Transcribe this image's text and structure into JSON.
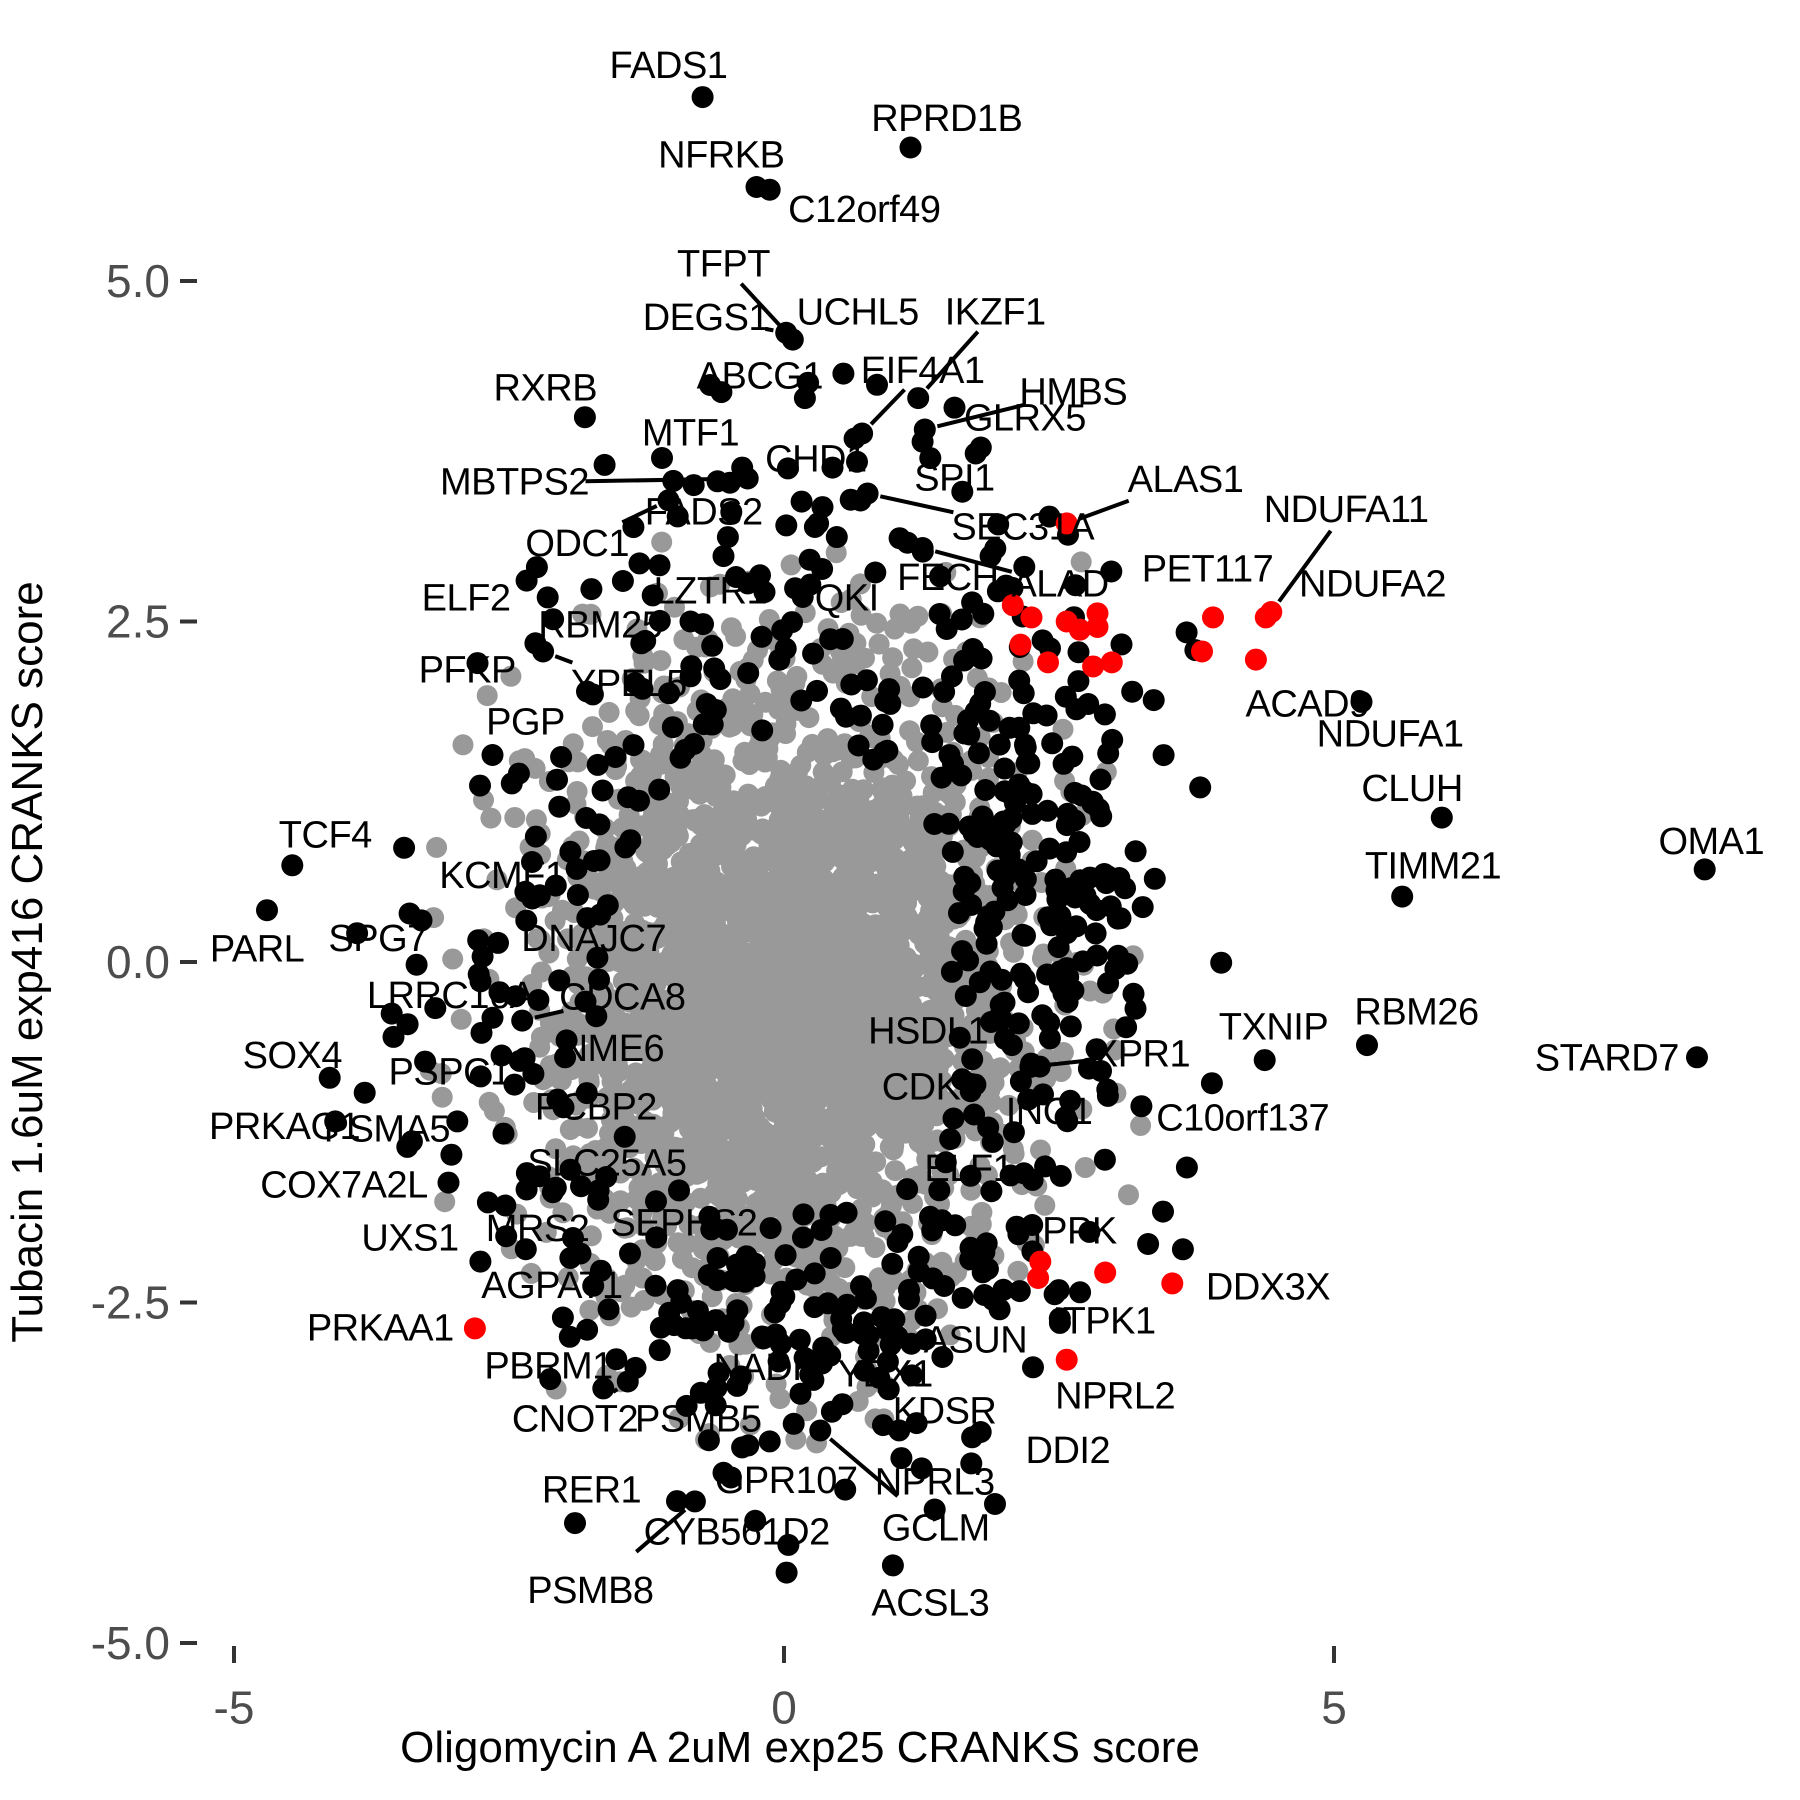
{
  "chart_data": {
    "type": "scatter",
    "title": "",
    "xlabel": "Oligomycin A 2uM exp25 CRANKS score",
    "ylabel": "Tubacin 1.6uM exp416 CRANKS score",
    "x_ticks": [
      -5,
      0,
      5
    ],
    "x_tick_labels": [
      "-5",
      "0",
      "5"
    ],
    "y_ticks": [
      5.0,
      2.5,
      0.0,
      -2.5,
      -5.0
    ],
    "y_tick_labels": [
      "5.0",
      "2.5",
      "0.0",
      "-2.5",
      "-5.0"
    ],
    "xlim": [
      -7.1,
      9.2
    ],
    "ylim": [
      -6.1,
      7.0
    ],
    "grid": "off",
    "legend": "none",
    "colors": {
      "background_point": "#999999",
      "highlight_point": "#000000",
      "hit_point": "#ff0000",
      "tick_text": "#4d4d4d",
      "axis_title_text": "#000000"
    },
    "labeled_points_format": "[gene, x, y, color(k=black,r=red), label_x, label_y, leader_line(0/1)]",
    "labeled_points": [
      [
        "FADS1",
        -0.74,
        6.35,
        "k",
        -1.05,
        6.58,
        0
      ],
      [
        "NFRKB",
        -0.25,
        5.69,
        "k",
        -0.57,
        5.92,
        0
      ],
      [
        "RPRD1B",
        1.15,
        5.98,
        "k",
        1.48,
        6.19,
        0
      ],
      [
        "C12orf49",
        -0.13,
        5.67,
        "k",
        0.73,
        5.52,
        0
      ],
      [
        "TFPT",
        0.08,
        4.57,
        "k",
        -0.55,
        5.12,
        1
      ],
      [
        "DEGS1",
        0.02,
        4.62,
        "k",
        -0.71,
        4.73,
        1
      ],
      [
        "UCHL5",
        0.54,
        4.32,
        "k",
        0.67,
        4.77,
        0
      ],
      [
        "IKZF1",
        1.22,
        4.14,
        "k",
        1.92,
        4.77,
        1
      ],
      [
        "EIF4A1",
        0.71,
        3.88,
        "k",
        1.26,
        4.34,
        1
      ],
      [
        "HMBS",
        1.28,
        3.91,
        "k",
        2.63,
        4.18,
        1
      ],
      [
        "GLRX5",
        1.26,
        3.82,
        "k",
        2.19,
        3.99,
        0
      ],
      [
        "SPI1",
        1.33,
        3.7,
        "k",
        1.55,
        3.55,
        0
      ],
      [
        "RXRB",
        -1.81,
        4.0,
        "k",
        -2.17,
        4.21,
        0
      ],
      [
        "ABCG1",
        0.19,
        4.14,
        "k",
        -0.22,
        4.3,
        0
      ],
      [
        "MTF1",
        -0.38,
        3.63,
        "k",
        -0.85,
        3.88,
        0
      ],
      [
        "CHD1",
        0.16,
        3.38,
        "k",
        0.29,
        3.69,
        0
      ],
      [
        "MBTPS2",
        -0.33,
        3.55,
        "k",
        -2.45,
        3.52,
        1
      ],
      [
        "FADS2",
        -0.51,
        3.12,
        "k",
        -0.73,
        3.3,
        0
      ],
      [
        "ODC1",
        -1.05,
        3.39,
        "k",
        -1.88,
        3.07,
        1
      ],
      [
        "SEC31A",
        0.76,
        3.44,
        "k",
        2.17,
        3.19,
        1
      ],
      [
        "ALAS1",
        2.57,
        3.22,
        "r",
        3.65,
        3.54,
        1
      ],
      [
        "FECH",
        0.83,
        2.86,
        "k",
        1.49,
        2.82,
        0
      ],
      [
        "ALAD",
        1.26,
        3.04,
        "k",
        2.51,
        2.77,
        1
      ],
      [
        "PET117",
        3.9,
        2.53,
        "r",
        3.85,
        2.88,
        0
      ],
      [
        "NDUFA11",
        4.43,
        2.57,
        "r",
        5.11,
        3.32,
        1
      ],
      [
        "NDUFA2",
        4.38,
        2.53,
        "r",
        5.35,
        2.77,
        0
      ],
      [
        "ACAD9",
        4.29,
        2.22,
        "r",
        4.76,
        1.89,
        0
      ],
      [
        "ELF2",
        -2.34,
        2.8,
        "k",
        -2.89,
        2.67,
        0
      ],
      [
        "RBM25",
        -0.85,
        2.5,
        "k",
        -1.67,
        2.47,
        0
      ],
      [
        "LZTR1",
        -0.33,
        2.78,
        "k",
        -0.67,
        2.72,
        0
      ],
      [
        "QKI",
        0.17,
        2.68,
        "k",
        0.57,
        2.67,
        0
      ],
      [
        "PFKP",
        -2.26,
        2.34,
        "k",
        -2.88,
        2.14,
        0
      ],
      [
        "YPEL5",
        -2.19,
        2.28,
        "k",
        -1.41,
        2.04,
        1
      ],
      [
        "PGP",
        -2.65,
        1.52,
        "k",
        -2.35,
        1.76,
        0
      ],
      [
        "TCF4",
        -4.47,
        0.71,
        "k",
        -4.17,
        0.93,
        0
      ],
      [
        "PARL",
        -4.7,
        0.38,
        "k",
        -4.79,
        0.09,
        0
      ],
      [
        "KCMF1",
        -2.22,
        0.49,
        "k",
        -2.56,
        0.63,
        0
      ],
      [
        "SPG7",
        -3.34,
        -0.02,
        "k",
        -3.69,
        0.17,
        0
      ],
      [
        "DNAJC7",
        -2.6,
        0.14,
        "k",
        -1.73,
        0.17,
        0
      ],
      [
        "LRRC16A",
        -2.65,
        -0.41,
        "k",
        -3.03,
        -0.25,
        0
      ],
      [
        "CDCA8",
        -2.38,
        -0.43,
        "k",
        -1.47,
        -0.26,
        1
      ],
      [
        "SOX4",
        -4.13,
        -0.85,
        "k",
        -4.47,
        -0.69,
        0
      ],
      [
        "PSPC1",
        -2.45,
        -0.9,
        "k",
        -3.04,
        -0.81,
        0
      ],
      [
        "NME6",
        -1.99,
        -0.7,
        "k",
        -1.56,
        -0.64,
        0
      ],
      [
        "PRKAG1",
        -4.08,
        -1.17,
        "k",
        -4.54,
        -1.21,
        0
      ],
      [
        "PSMA5",
        -2.97,
        -1.17,
        "k",
        -3.61,
        -1.23,
        0
      ],
      [
        "PCBP2",
        -2.55,
        -1.26,
        "k",
        -1.71,
        -1.07,
        0
      ],
      [
        "COX7A2L",
        -3.05,
        -1.62,
        "k",
        -4.0,
        -1.64,
        0
      ],
      [
        "SLC25A5",
        -2.34,
        -1.67,
        "k",
        -1.61,
        -1.48,
        0
      ],
      [
        "MRS2",
        -1.85,
        -2.14,
        "k",
        -2.24,
        -1.96,
        0
      ],
      [
        "SEPHS2",
        -1.4,
        -2.14,
        "k",
        -0.91,
        -1.92,
        0
      ],
      [
        "UXS1",
        -2.76,
        -2.2,
        "k",
        -3.4,
        -2.03,
        0
      ],
      [
        "AGPAT1",
        -2.01,
        -2.61,
        "k",
        -2.11,
        -2.38,
        0
      ],
      [
        "PRKAA1",
        -2.81,
        -2.69,
        "r",
        -3.67,
        -2.69,
        0
      ],
      [
        "PBRM1",
        -1.35,
        -2.98,
        "k",
        -2.14,
        -2.97,
        0
      ],
      [
        "CNOT2",
        -1.42,
        -3.08,
        "k",
        -1.9,
        -3.36,
        1
      ],
      [
        "PSMB5",
        -0.13,
        -3.52,
        "k",
        -0.78,
        -3.36,
        0
      ],
      [
        "NADK",
        0.15,
        -3.17,
        "k",
        -0.17,
        -2.98,
        0
      ],
      [
        "YBX1",
        0.42,
        -2.89,
        "k",
        0.92,
        -3.03,
        0
      ],
      [
        "ASUN",
        1.9,
        -2.48,
        "k",
        1.74,
        -2.78,
        0
      ],
      [
        "IPPK",
        2.33,
        -2.2,
        "r",
        2.64,
        -1.98,
        0
      ],
      [
        "ITPK1",
        2.31,
        -2.32,
        "r",
        2.91,
        -2.64,
        1
      ],
      [
        "DDX3X",
        3.53,
        -2.36,
        "r",
        4.4,
        -2.39,
        0
      ],
      [
        "NPRL2",
        2.57,
        -2.92,
        "r",
        3.01,
        -3.19,
        0
      ],
      [
        "KDSR",
        0.9,
        -3.4,
        "k",
        1.46,
        -3.3,
        0
      ],
      [
        "DDI2",
        1.71,
        -3.49,
        "k",
        2.58,
        -3.59,
        0
      ],
      [
        "NPRL3",
        1.37,
        -4.02,
        "k",
        1.37,
        -3.82,
        0
      ],
      [
        "GCLM",
        0.33,
        -3.44,
        "k",
        1.38,
        -4.16,
        1
      ],
      [
        "GPR107",
        -0.55,
        -3.75,
        "k",
        0.02,
        -3.81,
        0
      ],
      [
        "CYB561D2",
        0.04,
        -4.28,
        "k",
        -0.43,
        -4.19,
        0
      ],
      [
        "PSMB8",
        -0.81,
        -3.96,
        "k",
        -1.76,
        -4.62,
        1
      ],
      [
        "RER1",
        -1.9,
        -4.12,
        "k",
        -1.75,
        -3.88,
        0
      ],
      [
        "ACSL3",
        0.99,
        -4.43,
        "k",
        1.33,
        -4.71,
        0
      ],
      [
        "ELF1",
        2.26,
        -1.6,
        "k",
        1.68,
        -1.52,
        0
      ],
      [
        "HSDL1",
        1.96,
        -0.4,
        "k",
        1.31,
        -0.51,
        0
      ],
      [
        "CDK8",
        1.74,
        -0.9,
        "k",
        1.34,
        -0.92,
        0
      ],
      [
        "XPR1",
        2.24,
        -0.77,
        "k",
        3.25,
        -0.68,
        1
      ],
      [
        "ING1",
        2.22,
        -1.01,
        "k",
        2.41,
        -1.1,
        0
      ],
      [
        "C10orf137",
        3.89,
        -0.89,
        "k",
        4.17,
        -1.15,
        0
      ],
      [
        "TXNIP",
        4.37,
        -0.72,
        "k",
        4.45,
        -0.48,
        0
      ],
      [
        "RBM26",
        5.3,
        -0.61,
        "k",
        5.75,
        -0.37,
        0
      ],
      [
        "STARD7",
        8.3,
        -0.7,
        "k",
        7.48,
        -0.71,
        0
      ],
      [
        "OMA1",
        8.37,
        0.68,
        "k",
        8.43,
        0.88,
        0
      ],
      [
        "TIMM21",
        5.62,
        0.48,
        "k",
        5.9,
        0.7,
        0
      ],
      [
        "CLUH",
        5.98,
        1.06,
        "k",
        5.71,
        1.27,
        0
      ],
      [
        "NDUFA1",
        5.25,
        1.91,
        "k",
        5.51,
        1.67,
        0
      ]
    ],
    "extra_red_points": [
      [
        2.08,
        2.62
      ],
      [
        2.25,
        2.53
      ],
      [
        2.57,
        2.5
      ],
      [
        2.69,
        2.44
      ],
      [
        2.85,
        2.46
      ],
      [
        2.85,
        2.56
      ],
      [
        2.15,
        2.33
      ],
      [
        2.4,
        2.2
      ],
      [
        2.81,
        2.17
      ],
      [
        2.98,
        2.2
      ],
      [
        3.8,
        2.28
      ],
      [
        2.92,
        -2.28
      ]
    ],
    "extra_black_points": [
      [
        -2.78,
        0.16
      ],
      [
        -2.74,
        0.04
      ],
      [
        -3.55,
        -0.55
      ],
      [
        -2.75,
        -0.52
      ],
      [
        -1.79,
        -2.7
      ],
      [
        -1.13,
        -2.85
      ],
      [
        0.35,
        3.34
      ],
      [
        0.31,
        3.22
      ],
      [
        0.48,
        3.12
      ],
      [
        -0.55,
        2.98
      ],
      [
        1.55,
        4.07
      ],
      [
        3.66,
        2.42
      ],
      [
        3.74,
        2.29
      ],
      [
        1.71,
        2.64
      ],
      [
        0.42,
        2.37
      ],
      [
        -0.62,
        1.85
      ],
      [
        1.44,
        -2.9
      ],
      [
        0.73,
        -3.0
      ],
      [
        0.52,
        -2.62
      ],
      [
        -0.2,
        -2.75
      ]
    ],
    "background_cloud": {
      "description": "dense unlabeled gray gene cloud",
      "count": 2600,
      "center": [
        0.0,
        -0.15
      ],
      "sd": [
        1.05,
        1.15
      ],
      "clip": [
        -3.25,
        3.25,
        -3.6,
        3.1
      ],
      "seed": 7
    },
    "black_scatter": {
      "ring": {
        "count": 320,
        "center": [
          0.1,
          0.0
        ],
        "sd": [
          1.8,
          1.9
        ],
        "inner_exclusion": [
          1.5,
          1.62
        ]
      },
      "right_lobe": {
        "count": 140,
        "center": [
          2.35,
          0.8
        ],
        "sd": [
          0.62,
          0.92
        ]
      },
      "bottom_lobe": {
        "count": 70,
        "center": [
          0.25,
          -2.5
        ],
        "sd": [
          0.95,
          0.45
        ]
      },
      "top_sprinkle": {
        "count": 18,
        "center": [
          0.3,
          3.2
        ],
        "sd": [
          0.8,
          0.55
        ]
      }
    }
  }
}
